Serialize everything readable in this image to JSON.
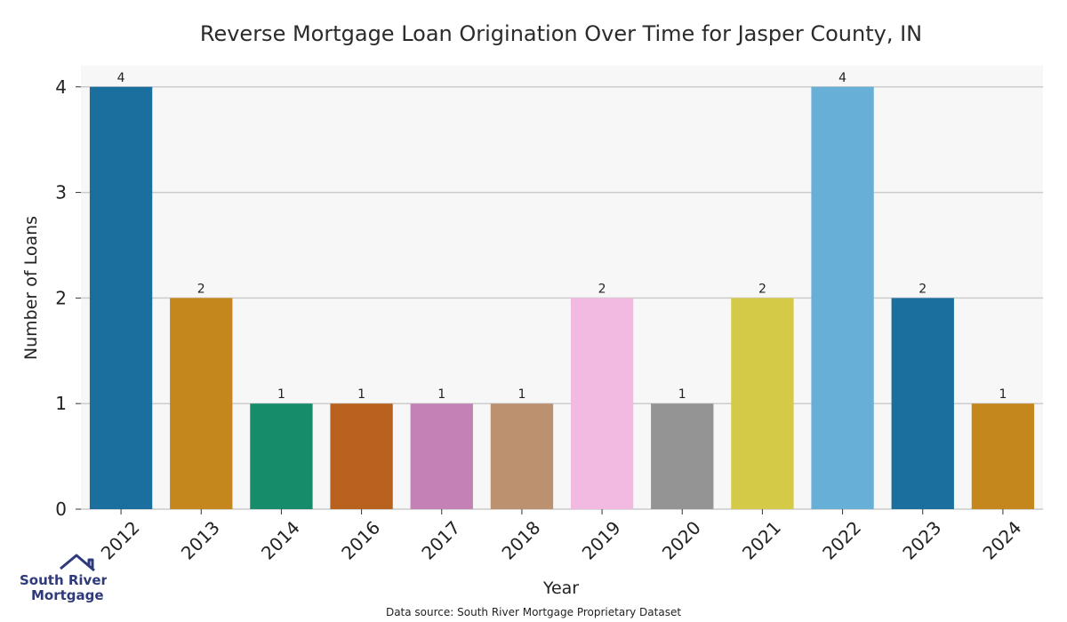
{
  "chart_data": {
    "type": "bar",
    "title": "Reverse Mortgage Loan Origination Over Time for Jasper County, IN",
    "xlabel": "Year",
    "ylabel": "Number of Loans",
    "categories": [
      "2012",
      "2013",
      "2014",
      "2016",
      "2017",
      "2018",
      "2019",
      "2020",
      "2021",
      "2022",
      "2023",
      "2024"
    ],
    "values": [
      4,
      2,
      1,
      1,
      1,
      1,
      2,
      1,
      2,
      4,
      2,
      1
    ],
    "colors": [
      "#1a6f9f",
      "#c4871e",
      "#178c6b",
      "#b9621f",
      "#c381b5",
      "#bc9170",
      "#f2b9e1",
      "#949494",
      "#d5ca47",
      "#68afd8",
      "#1a6f9f",
      "#c4871e"
    ],
    "ylim": [
      0,
      4.2
    ],
    "yticks": [
      0,
      1,
      2,
      3,
      4
    ],
    "grid": true,
    "background": "#f7f7f7"
  },
  "footer": {
    "source": "Data source: South River Mortgage Proprietary Dataset"
  },
  "logo": {
    "line1": "South River",
    "line2": "Mortgage",
    "color": "#2f3a7a"
  }
}
